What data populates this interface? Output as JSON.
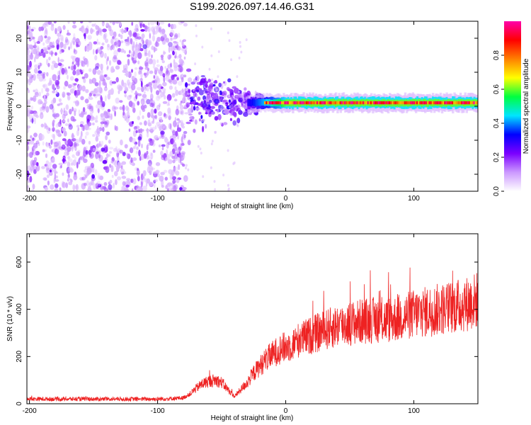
{
  "title": "S199.2026.097.14.46.G31",
  "chart_data": [
    {
      "type": "heatmap",
      "name": "spectrogram",
      "xlabel": "Height of straight line (km)",
      "ylabel": "Frequency (Hz)",
      "xlim": [
        -202,
        150
      ],
      "ylim": [
        -25,
        25
      ],
      "xticks": [
        -200,
        -100,
        0,
        100
      ],
      "xtick_labels": [
        "-200",
        "-100",
        "0",
        "100"
      ],
      "yticks": [
        -20,
        -10,
        0,
        10,
        20
      ],
      "ytick_labels": [
        "-20",
        "-10",
        "0",
        "10",
        "20"
      ],
      "features": {
        "noise_region_x": [
          -202,
          -78
        ],
        "transition_region_x": [
          -78,
          -18
        ],
        "carrier_region_x": [
          -18,
          150
        ],
        "carrier_freq_hz": 1
      },
      "colorbar": {
        "label": "Normalized spectral amplitude",
        "range": [
          0.0,
          1.0
        ],
        "ticks": [
          0.0,
          0.2,
          0.4,
          0.6,
          0.8
        ],
        "tick_labels": [
          "0.0",
          "0.2",
          "0.4",
          "0.6",
          "0.8"
        ],
        "colors": [
          "#ffffff",
          "#cc99ff",
          "#7b00ff",
          "#0000ff",
          "#00e5ff",
          "#00ff40",
          "#ffff00",
          "#ff8000",
          "#ff0000",
          "#ff00aa"
        ]
      }
    },
    {
      "type": "line",
      "name": "snr",
      "xlabel": "Height of straight line (km)",
      "ylabel": "SNR (10 * v/v)",
      "xlim": [
        -202,
        150
      ],
      "ylim": [
        0,
        720
      ],
      "xticks": [
        -200,
        -100,
        0,
        100
      ],
      "xtick_labels": [
        "-200",
        "-100",
        "0",
        "100"
      ],
      "yticks": [
        0,
        200,
        400,
        600
      ],
      "ytick_labels": [
        "0",
        "200",
        "400",
        "600"
      ],
      "color": "#ee2222",
      "series": [
        {
          "name": "SNR",
          "x": [
            -202,
            -180,
            -160,
            -140,
            -120,
            -100,
            -90,
            -80,
            -75,
            -70,
            -65,
            -60,
            -55,
            -50,
            -45,
            -40,
            -35,
            -30,
            -25,
            -20,
            -15,
            -10,
            -5,
            0,
            5,
            10,
            20,
            30,
            40,
            50,
            60,
            70,
            80,
            90,
            100,
            110,
            120,
            130,
            140,
            150
          ],
          "y": [
            20,
            20,
            20,
            20,
            20,
            20,
            22,
            25,
            40,
            65,
            85,
            95,
            100,
            90,
            60,
            30,
            60,
            90,
            130,
            160,
            190,
            210,
            230,
            240,
            250,
            270,
            290,
            310,
            330,
            340,
            350,
            355,
            355,
            365,
            380,
            390,
            400,
            410,
            420,
            440
          ]
        }
      ]
    }
  ]
}
